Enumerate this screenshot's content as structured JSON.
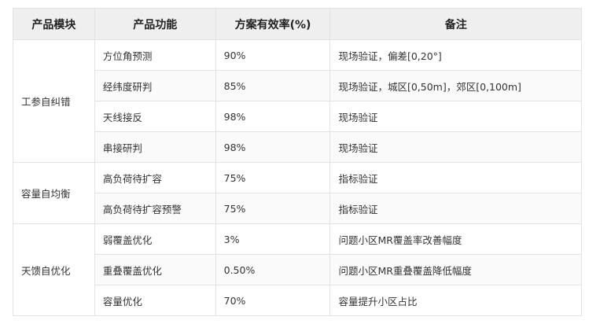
{
  "table": {
    "headers": [
      "产品模块",
      "产品功能",
      "方案有效率(%)",
      "备注"
    ],
    "groups": [
      {
        "module": "工参自纠错",
        "rows": [
          {
            "function": "方位角预测",
            "rate": "90%",
            "note": "现场验证，偏差[0,20°]"
          },
          {
            "function": "经纬度研判",
            "rate": "85%",
            "note": "现场验证，城区[0,50m]，郊区[0,100m]"
          },
          {
            "function": "天线接反",
            "rate": "98%",
            "note": "现场验证"
          },
          {
            "function": "串接研判",
            "rate": "98%",
            "note": "现场验证"
          }
        ]
      },
      {
        "module": "容量自均衡",
        "rows": [
          {
            "function": "高负荷待扩容",
            "rate": "75%",
            "note": "指标验证"
          },
          {
            "function": "高负荷待扩容预警",
            "rate": "75%",
            "note": "指标验证"
          }
        ]
      },
      {
        "module": "天馈自优化",
        "rows": [
          {
            "function": "弱覆盖优化",
            "rate": "3%",
            "note": "问题小区MR覆盖率改善幅度"
          },
          {
            "function": "重叠覆盖优化",
            "rate": "0.50%",
            "note": "问题小区MR重叠覆盖降低幅度"
          },
          {
            "function": "容量优化",
            "rate": "70%",
            "note": "容量提升小区占比"
          }
        ]
      }
    ]
  }
}
